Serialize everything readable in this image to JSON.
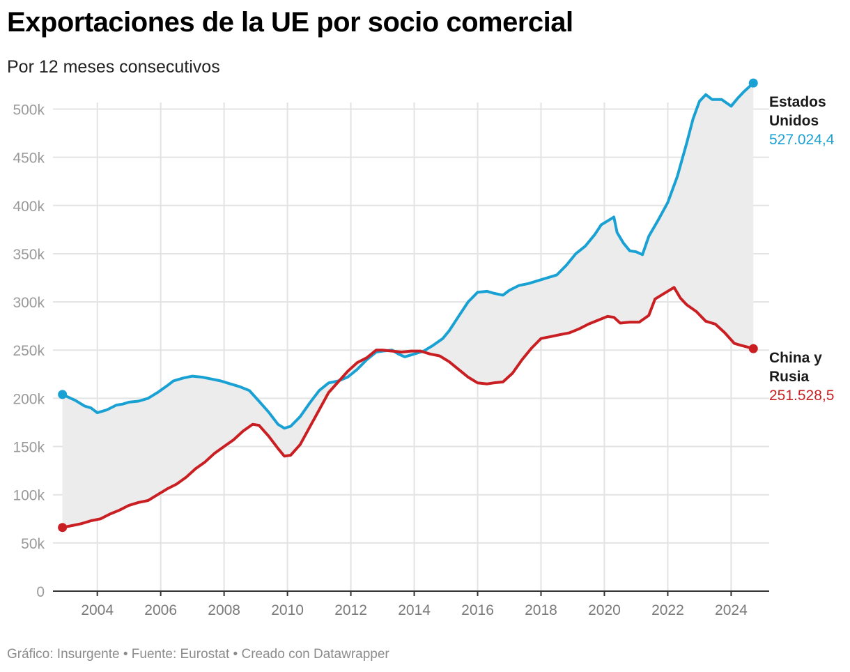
{
  "header": {
    "title": "Exportaciones de la UE por socio comercial",
    "subtitle": "Por 12 meses consecutivos"
  },
  "footer": {
    "credit": "Gráfico: Insurgente • Fuente: Eurostat • Creado con Datawrapper"
  },
  "colors": {
    "us": "#1aa1d4",
    "cr": "#c91f23",
    "area": "#ececec",
    "grid": "#e3e3e3"
  },
  "chart_data": {
    "type": "line",
    "title": "Exportaciones de la UE por socio comercial",
    "subtitle": "Por 12 meses consecutivos",
    "xlabel": "",
    "ylabel": "",
    "xlim": [
      2002.6,
      2025.2
    ],
    "ylim": [
      0,
      530000
    ],
    "x_ticks": [
      2004,
      2006,
      2008,
      2010,
      2012,
      2014,
      2016,
      2018,
      2020,
      2022,
      2024
    ],
    "x_tick_labels": [
      "2004",
      "2006",
      "2008",
      "2010",
      "2012",
      "2014",
      "2016",
      "2018",
      "2020",
      "2022",
      "2024"
    ],
    "y_ticks": [
      0,
      50000,
      100000,
      150000,
      200000,
      250000,
      300000,
      350000,
      400000,
      450000,
      500000
    ],
    "y_tick_labels": [
      "0",
      "50k",
      "100k",
      "150k",
      "200k",
      "250k",
      "300k",
      "350k",
      "400k",
      "450k",
      "500k"
    ],
    "grid": true,
    "fill_between": true,
    "series": [
      {
        "name": "Estados Unidos",
        "label_lines": [
          "Estados",
          "Unidos"
        ],
        "last_value_label": "527.024,4",
        "points": [
          [
            2002.9,
            204000
          ],
          [
            2003.3,
            198000
          ],
          [
            2003.6,
            192000
          ],
          [
            2003.8,
            190000
          ],
          [
            2004.0,
            185000
          ],
          [
            2004.3,
            188000
          ],
          [
            2004.6,
            193000
          ],
          [
            2004.8,
            194000
          ],
          [
            2005.0,
            196000
          ],
          [
            2005.3,
            197000
          ],
          [
            2005.6,
            200000
          ],
          [
            2005.9,
            206000
          ],
          [
            2006.2,
            213000
          ],
          [
            2006.4,
            218000
          ],
          [
            2006.7,
            221000
          ],
          [
            2007.0,
            223000
          ],
          [
            2007.3,
            222000
          ],
          [
            2007.6,
            220000
          ],
          [
            2007.9,
            218000
          ],
          [
            2008.2,
            215000
          ],
          [
            2008.5,
            212000
          ],
          [
            2008.8,
            208000
          ],
          [
            2009.1,
            197000
          ],
          [
            2009.4,
            186000
          ],
          [
            2009.7,
            173000
          ],
          [
            2009.9,
            169000
          ],
          [
            2010.1,
            171000
          ],
          [
            2010.4,
            181000
          ],
          [
            2010.7,
            195000
          ],
          [
            2011.0,
            208000
          ],
          [
            2011.3,
            216000
          ],
          [
            2011.6,
            218000
          ],
          [
            2011.9,
            222000
          ],
          [
            2012.2,
            230000
          ],
          [
            2012.5,
            240000
          ],
          [
            2012.8,
            248000
          ],
          [
            2013.0,
            249000
          ],
          [
            2013.3,
            250000
          ],
          [
            2013.5,
            246000
          ],
          [
            2013.7,
            243000
          ],
          [
            2014.0,
            246000
          ],
          [
            2014.3,
            249000
          ],
          [
            2014.6,
            255000
          ],
          [
            2014.9,
            262000
          ],
          [
            2015.1,
            270000
          ],
          [
            2015.4,
            285000
          ],
          [
            2015.7,
            300000
          ],
          [
            2016.0,
            310000
          ],
          [
            2016.3,
            311000
          ],
          [
            2016.5,
            309000
          ],
          [
            2016.8,
            307000
          ],
          [
            2017.0,
            312000
          ],
          [
            2017.3,
            317000
          ],
          [
            2017.6,
            319000
          ],
          [
            2017.9,
            322000
          ],
          [
            2018.2,
            325000
          ],
          [
            2018.5,
            328000
          ],
          [
            2018.8,
            338000
          ],
          [
            2019.1,
            350000
          ],
          [
            2019.4,
            358000
          ],
          [
            2019.7,
            370000
          ],
          [
            2019.9,
            380000
          ],
          [
            2020.2,
            386000
          ],
          [
            2020.3,
            388000
          ],
          [
            2020.4,
            372000
          ],
          [
            2020.6,
            361000
          ],
          [
            2020.8,
            353000
          ],
          [
            2021.0,
            352000
          ],
          [
            2021.2,
            349000
          ],
          [
            2021.4,
            368000
          ],
          [
            2021.7,
            385000
          ],
          [
            2022.0,
            403000
          ],
          [
            2022.3,
            430000
          ],
          [
            2022.6,
            465000
          ],
          [
            2022.8,
            490000
          ],
          [
            2023.0,
            508000
          ],
          [
            2023.2,
            515000
          ],
          [
            2023.4,
            510000
          ],
          [
            2023.7,
            510000
          ],
          [
            2024.0,
            503000
          ],
          [
            2024.2,
            511000
          ],
          [
            2024.4,
            518000
          ],
          [
            2024.6,
            524000
          ],
          [
            2024.7,
            527024.4
          ]
        ]
      },
      {
        "name": "China y Rusia",
        "label_lines": [
          "China y",
          "Rusia"
        ],
        "last_value_label": "251.528,5",
        "points": [
          [
            2002.9,
            66000
          ],
          [
            2003.2,
            68000
          ],
          [
            2003.5,
            70000
          ],
          [
            2003.8,
            73000
          ],
          [
            2004.1,
            75000
          ],
          [
            2004.4,
            80000
          ],
          [
            2004.7,
            84000
          ],
          [
            2005.0,
            89000
          ],
          [
            2005.3,
            92000
          ],
          [
            2005.6,
            94000
          ],
          [
            2005.9,
            100000
          ],
          [
            2006.2,
            106000
          ],
          [
            2006.5,
            111000
          ],
          [
            2006.8,
            118000
          ],
          [
            2007.1,
            127000
          ],
          [
            2007.4,
            134000
          ],
          [
            2007.7,
            143000
          ],
          [
            2008.0,
            150000
          ],
          [
            2008.3,
            157000
          ],
          [
            2008.6,
            166000
          ],
          [
            2008.9,
            173000
          ],
          [
            2009.1,
            172000
          ],
          [
            2009.4,
            161000
          ],
          [
            2009.7,
            148000
          ],
          [
            2009.9,
            140000
          ],
          [
            2010.1,
            141000
          ],
          [
            2010.4,
            152000
          ],
          [
            2010.7,
            170000
          ],
          [
            2011.0,
            188000
          ],
          [
            2011.3,
            206000
          ],
          [
            2011.6,
            217000
          ],
          [
            2011.9,
            228000
          ],
          [
            2012.2,
            237000
          ],
          [
            2012.5,
            242000
          ],
          [
            2012.8,
            250000
          ],
          [
            2013.0,
            250000
          ],
          [
            2013.3,
            249000
          ],
          [
            2013.6,
            248000
          ],
          [
            2013.9,
            249000
          ],
          [
            2014.2,
            249000
          ],
          [
            2014.5,
            246000
          ],
          [
            2014.8,
            244000
          ],
          [
            2015.1,
            238000
          ],
          [
            2015.4,
            230000
          ],
          [
            2015.7,
            222000
          ],
          [
            2016.0,
            216000
          ],
          [
            2016.3,
            215000
          ],
          [
            2016.5,
            216000
          ],
          [
            2016.8,
            217000
          ],
          [
            2017.1,
            226000
          ],
          [
            2017.4,
            240000
          ],
          [
            2017.7,
            252000
          ],
          [
            2018.0,
            262000
          ],
          [
            2018.3,
            264000
          ],
          [
            2018.6,
            266000
          ],
          [
            2018.9,
            268000
          ],
          [
            2019.2,
            272000
          ],
          [
            2019.5,
            277000
          ],
          [
            2019.8,
            281000
          ],
          [
            2020.1,
            285000
          ],
          [
            2020.3,
            284000
          ],
          [
            2020.5,
            278000
          ],
          [
            2020.8,
            279000
          ],
          [
            2021.1,
            279000
          ],
          [
            2021.4,
            286000
          ],
          [
            2021.6,
            303000
          ],
          [
            2021.9,
            309000
          ],
          [
            2022.1,
            313000
          ],
          [
            2022.2,
            315000
          ],
          [
            2022.4,
            304000
          ],
          [
            2022.6,
            297000
          ],
          [
            2022.9,
            290000
          ],
          [
            2023.2,
            280000
          ],
          [
            2023.5,
            277000
          ],
          [
            2023.8,
            268000
          ],
          [
            2024.1,
            257000
          ],
          [
            2024.3,
            255000
          ],
          [
            2024.7,
            251528.5
          ]
        ]
      }
    ]
  }
}
